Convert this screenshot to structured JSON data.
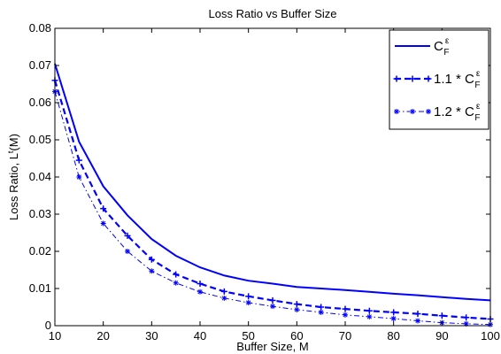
{
  "chart_data": {
    "type": "line",
    "title": "Loss Ratio vs Buffer Size",
    "xlabel": "Buffer Size, M",
    "ylabel_main": "Loss Ratio, L",
    "ylabel_sup": "t",
    "ylabel_tail": "(M)",
    "xlim": [
      10,
      100
    ],
    "ylim": [
      0,
      0.08
    ],
    "xticks": [
      10,
      20,
      30,
      40,
      50,
      60,
      70,
      80,
      90,
      100
    ],
    "yticks": [
      0,
      0.01,
      0.02,
      0.03,
      0.04,
      0.05,
      0.06,
      0.07,
      0.08
    ],
    "ytick_labels": [
      "0",
      "0.01",
      "0.02",
      "0.03",
      "0.04",
      "0.05",
      "0.06",
      "0.07",
      "0.08"
    ],
    "grid": false,
    "legend_position": "top-right",
    "series": [
      {
        "name": "C_F^ε",
        "legend_prefix": "",
        "legend_base": "C",
        "legend_sup": "ε",
        "legend_sub": "F",
        "color": "#0000ff",
        "line_style": "solid",
        "marker": "none",
        "x": [
          10,
          15,
          20,
          25,
          30,
          35,
          40,
          45,
          50,
          55,
          60,
          65,
          70,
          75,
          80,
          85,
          90,
          95,
          100
        ],
        "y": [
          0.0705,
          0.0495,
          0.0375,
          0.0297,
          0.0233,
          0.0188,
          0.0157,
          0.0135,
          0.0121,
          0.0113,
          0.0104,
          0.01,
          0.0096,
          0.0091,
          0.0086,
          0.0082,
          0.0077,
          0.0072,
          0.0068
        ]
      },
      {
        "name": "1.1 * C_F^ε",
        "legend_prefix": "1.1 * ",
        "legend_base": "C",
        "legend_sup": "ε",
        "legend_sub": "F",
        "color": "#0000ff",
        "line_style": "dashed",
        "marker": "plus",
        "x": [
          10,
          15,
          20,
          25,
          30,
          35,
          40,
          45,
          50,
          55,
          60,
          65,
          70,
          75,
          80,
          85,
          90,
          95,
          100
        ],
        "y": [
          0.066,
          0.0445,
          0.0315,
          0.0242,
          0.0178,
          0.0138,
          0.0113,
          0.0092,
          0.0079,
          0.0068,
          0.0058,
          0.005,
          0.0045,
          0.004,
          0.0036,
          0.0032,
          0.0027,
          0.0022,
          0.0018
        ]
      },
      {
        "name": "1.2 * C_F^ε",
        "legend_prefix": "1.2 * ",
        "legend_base": "C",
        "legend_sup": "ε",
        "legend_sub": "F",
        "color": "#0000ff",
        "line_style": "dashdot",
        "marker": "star",
        "x": [
          10,
          15,
          20,
          25,
          30,
          35,
          40,
          45,
          50,
          55,
          60,
          65,
          70,
          75,
          80,
          85,
          90,
          95,
          100
        ],
        "y": [
          0.063,
          0.04,
          0.0275,
          0.02,
          0.0147,
          0.0115,
          0.0091,
          0.0074,
          0.0062,
          0.0052,
          0.0043,
          0.0036,
          0.0029,
          0.0024,
          0.0019,
          0.0013,
          0.0008,
          0.0005,
          0.0003
        ]
      }
    ]
  }
}
